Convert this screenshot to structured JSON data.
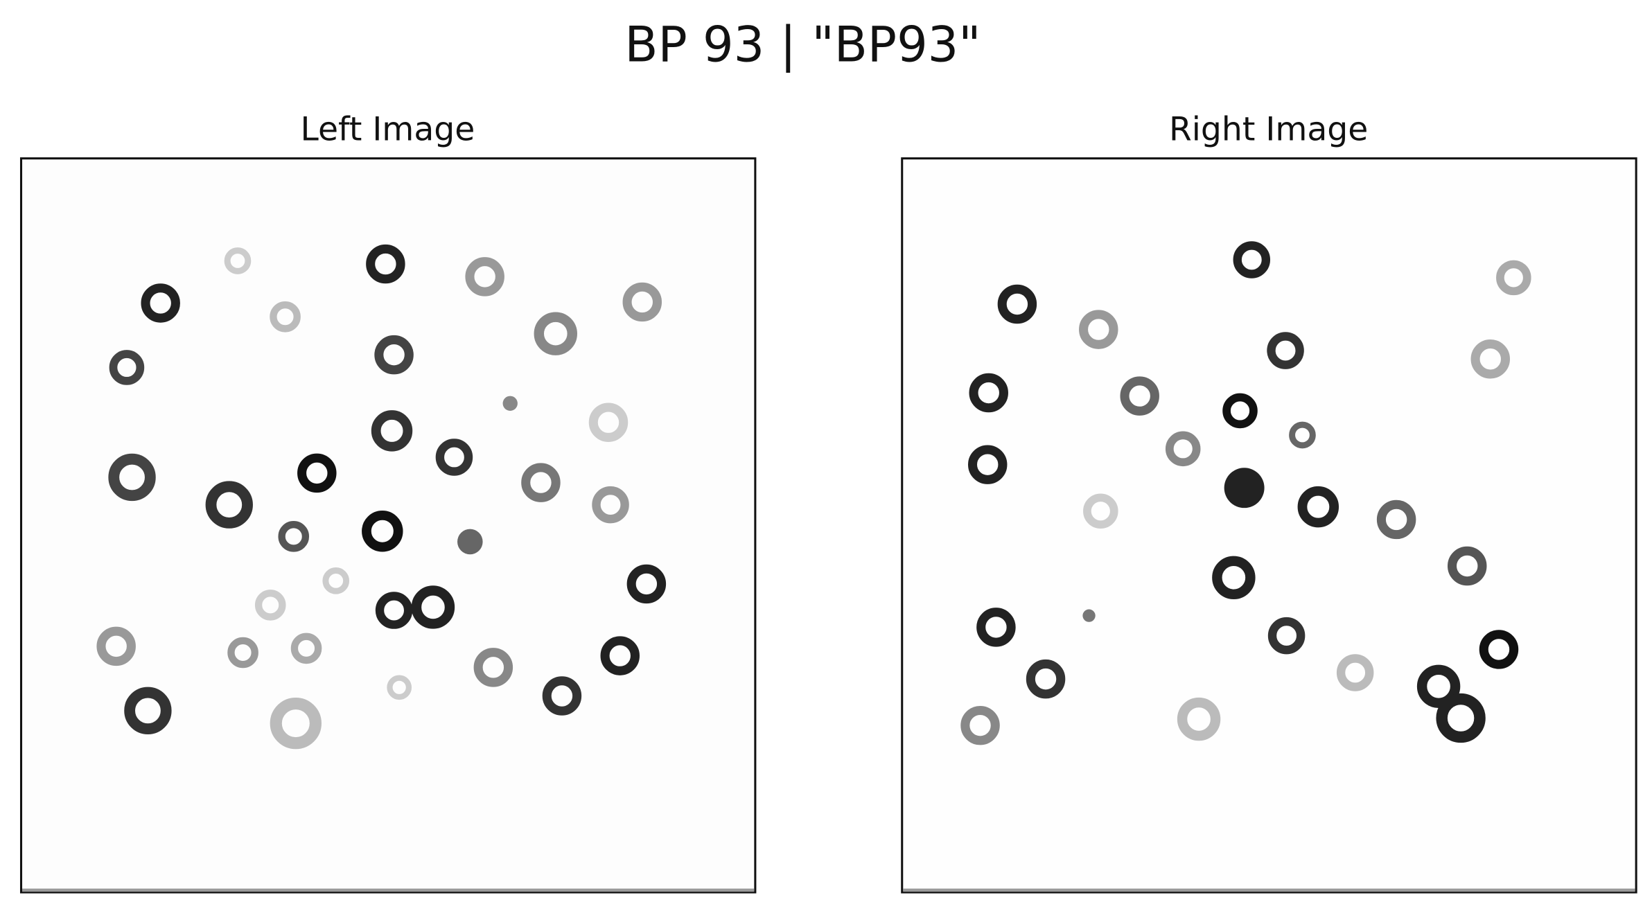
{
  "title": "BP 93 | \"BP93\"",
  "panels": [
    {
      "title": "Left Image"
    },
    {
      "title": "Right Image"
    }
  ]
}
